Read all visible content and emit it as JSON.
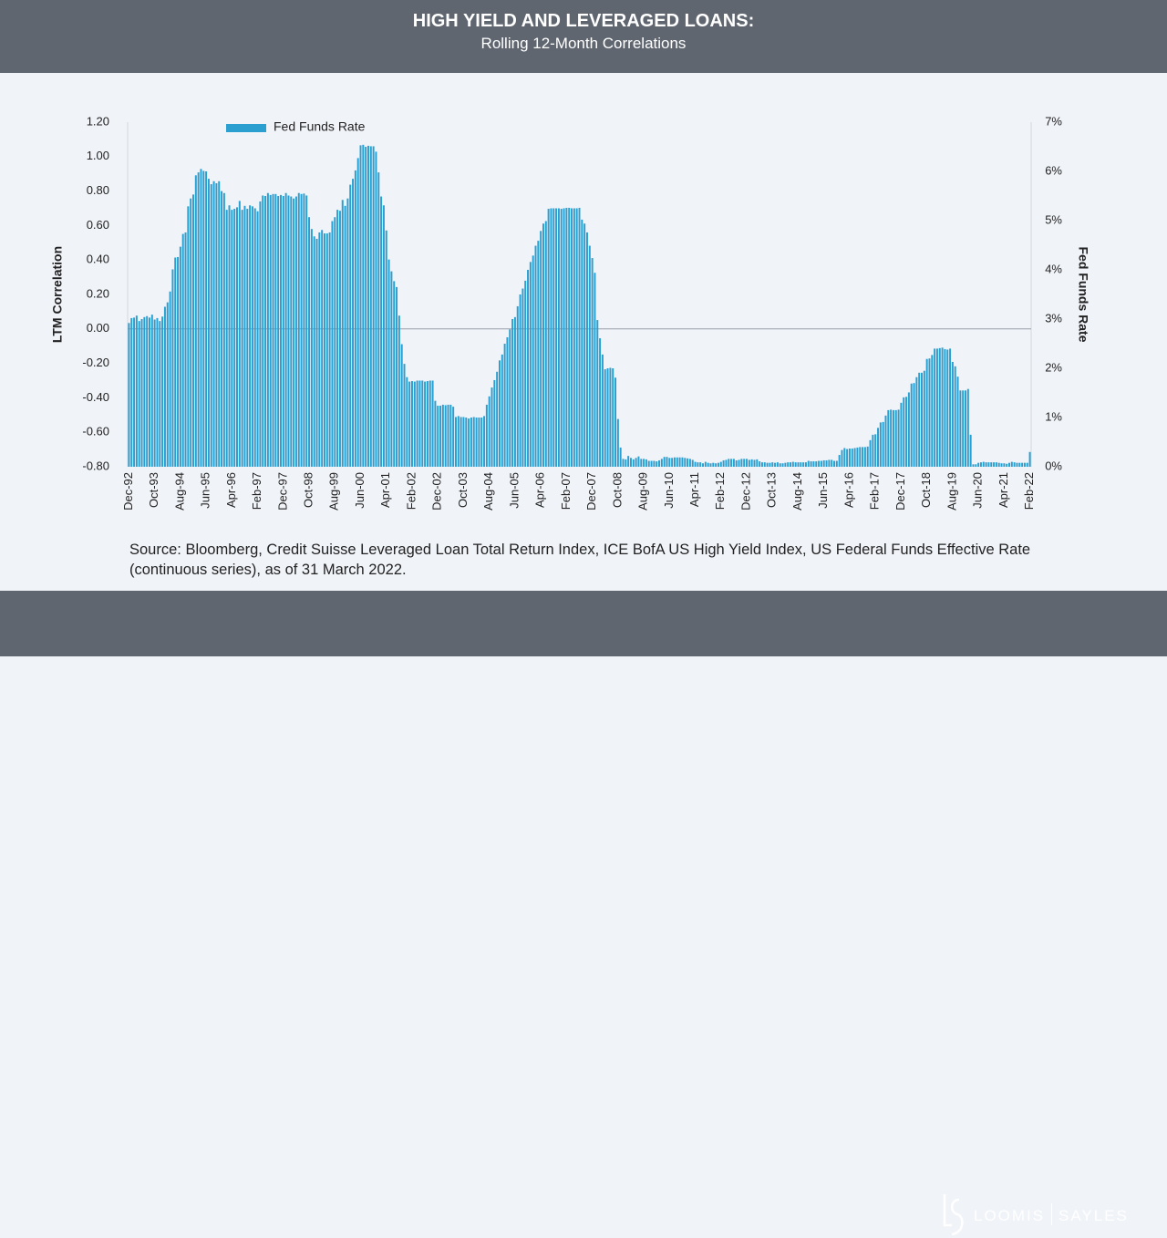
{
  "header": {
    "title": "HIGH YIELD AND LEVERAGED LOANS:",
    "subtitle": "Rolling 12-Month Correlations"
  },
  "chart_data": {
    "type": "bar",
    "y_label": "LTM Correlation",
    "y2_label": "Fed Funds Rate",
    "legend": "upper left",
    "categories": [
      "Dec-92",
      null,
      null,
      null,
      null,
      null,
      null,
      null,
      null,
      null,
      "Oct-93",
      null,
      null,
      null,
      null,
      null,
      null,
      null,
      null,
      null,
      "Aug-94",
      null,
      null,
      null,
      null,
      null,
      null,
      null,
      null,
      null,
      "Jun-95",
      null,
      null,
      null,
      null,
      null,
      null,
      null,
      null,
      null,
      "Apr-96",
      null,
      null,
      null,
      null,
      null,
      null,
      null,
      null,
      null,
      "Feb-97",
      null,
      null,
      null,
      null,
      null,
      null,
      null,
      null,
      null,
      "Dec-97",
      null,
      null,
      null,
      null,
      null,
      null,
      null,
      null,
      null,
      "Oct-98",
      null,
      null,
      null,
      null,
      null,
      null,
      null,
      null,
      null,
      "Aug-99",
      null,
      null,
      null,
      null,
      null,
      null,
      null,
      null,
      null,
      "Jun-00",
      null,
      null,
      null,
      null,
      null,
      null,
      null,
      null,
      null,
      "Apr-01",
      null,
      null,
      null,
      null,
      null,
      null,
      null,
      null,
      null,
      "Feb-02",
      null,
      null,
      null,
      null,
      null,
      null,
      null,
      null,
      null,
      "Dec-02",
      null,
      null,
      null,
      null,
      null,
      null,
      null,
      null,
      null,
      "Oct-03",
      null,
      null,
      null,
      null,
      null,
      null,
      null,
      null,
      null,
      "Aug-04",
      null,
      null,
      null,
      null,
      null,
      null,
      null,
      null,
      null,
      "Jun-05",
      null,
      null,
      null,
      null,
      null,
      null,
      null,
      null,
      null,
      "Apr-06",
      null,
      null,
      null,
      null,
      null,
      null,
      null,
      null,
      null,
      "Feb-07",
      null,
      null,
      null,
      null,
      null,
      null,
      null,
      null,
      null,
      "Dec-07",
      null,
      null,
      null,
      null,
      null,
      null,
      null,
      null,
      null,
      "Oct-08",
      null,
      null,
      null,
      null,
      null,
      null,
      null,
      null,
      null,
      "Aug-09",
      null,
      null,
      null,
      null,
      null,
      null,
      null,
      null,
      null,
      "Jun-10",
      null,
      null,
      null,
      null,
      null,
      null,
      null,
      null,
      null,
      "Apr-11",
      null,
      null,
      null,
      null,
      null,
      null,
      null,
      null,
      null,
      "Feb-12",
      null,
      null,
      null,
      null,
      null,
      null,
      null,
      null,
      null,
      "Dec-12",
      null,
      null,
      null,
      null,
      null,
      null,
      null,
      null,
      null,
      "Oct-13",
      null,
      null,
      null,
      null,
      null,
      null,
      null,
      null,
      null,
      "Aug-14",
      null,
      null,
      null,
      null,
      null,
      null,
      null,
      null,
      null,
      "Jun-15",
      null,
      null,
      null,
      null,
      null,
      null,
      null,
      null,
      null,
      "Apr-16",
      null,
      null,
      null,
      null,
      null,
      null,
      null,
      null,
      null,
      "Feb-17",
      null,
      null,
      null,
      null,
      null,
      null,
      null,
      null,
      null,
      "Dec-17",
      null,
      null,
      null,
      null,
      null,
      null,
      null,
      null,
      null,
      "Oct-18",
      null,
      null,
      null,
      null,
      null,
      null,
      null,
      null,
      null,
      "Aug-19",
      null,
      null,
      null,
      null,
      null,
      null,
      null,
      null,
      null,
      "Jun-20",
      null,
      null,
      null,
      null,
      null,
      null,
      null,
      null,
      null,
      "Apr-21",
      null,
      null,
      null,
      null,
      null,
      null,
      null,
      null,
      null,
      "Feb-22"
    ],
    "series": [
      {
        "name": "Fed Funds Rate",
        "color": "#2b9fd0",
        "axis": "y2",
        "values": [
          2.92,
          3.02,
          3.03,
          3.07,
          2.96,
          3.0,
          3.04,
          3.06,
          3.03,
          3.09,
          2.99,
          3.02,
          2.96,
          3.05,
          3.25,
          3.34,
          3.56,
          4.01,
          4.25,
          4.26,
          4.47,
          4.73,
          4.76,
          5.29,
          5.45,
          5.53,
          5.92,
          5.98,
          6.05,
          6.01,
          6.0,
          5.85,
          5.74,
          5.8,
          5.76,
          5.8,
          5.6,
          5.56,
          5.22,
          5.31,
          5.22,
          5.24,
          5.27,
          5.4,
          5.22,
          5.3,
          5.24,
          5.31,
          5.29,
          5.25,
          5.19,
          5.39,
          5.51,
          5.5,
          5.56,
          5.52,
          5.54,
          5.54,
          5.5,
          5.52,
          5.5,
          5.56,
          5.51,
          5.49,
          5.45,
          5.49,
          5.56,
          5.54,
          5.55,
          5.51,
          5.07,
          4.83,
          4.68,
          4.63,
          4.76,
          4.81,
          4.74,
          4.74,
          4.76,
          4.99,
          5.07,
          5.22,
          5.2,
          5.42,
          5.3,
          5.45,
          5.73,
          5.85,
          6.02,
          6.27,
          6.53,
          6.54,
          6.5,
          6.52,
          6.51,
          6.51,
          6.4,
          5.98,
          5.49,
          5.31,
          4.8,
          4.21,
          3.97,
          3.77,
          3.65,
          3.07,
          2.49,
          2.09,
          1.82,
          1.73,
          1.74,
          1.73,
          1.75,
          1.75,
          1.75,
          1.73,
          1.74,
          1.75,
          1.75,
          1.34,
          1.24,
          1.24,
          1.26,
          1.25,
          1.26,
          1.26,
          1.22,
          1.01,
          1.03,
          1.01,
          1.01,
          1.0,
          0.98,
          1.0,
          1.01,
          1.0,
          1.0,
          1.0,
          1.03,
          1.26,
          1.43,
          1.61,
          1.76,
          1.93,
          2.16,
          2.28,
          2.5,
          2.63,
          2.79,
          3.0,
          3.04,
          3.26,
          3.5,
          3.62,
          3.78,
          4.0,
          4.16,
          4.29,
          4.49,
          4.59,
          4.79,
          4.94,
          4.99,
          5.24,
          5.25,
          5.25,
          5.25,
          5.25,
          5.24,
          5.25,
          5.26,
          5.26,
          5.25,
          5.25,
          5.25,
          5.26,
          5.02,
          4.94,
          4.76,
          4.49,
          4.24,
          3.94,
          2.98,
          2.61,
          2.28,
          1.98,
          2.0,
          2.01,
          2.0,
          1.81,
          0.97,
          0.39,
          0.16,
          0.15,
          0.22,
          0.18,
          0.15,
          0.18,
          0.21,
          0.16,
          0.16,
          0.15,
          0.12,
          0.12,
          0.12,
          0.11,
          0.13,
          0.16,
          0.2,
          0.2,
          0.18,
          0.18,
          0.19,
          0.19,
          0.19,
          0.19,
          0.18,
          0.17,
          0.16,
          0.14,
          0.1,
          0.09,
          0.09,
          0.07,
          0.1,
          0.08,
          0.07,
          0.08,
          0.07,
          0.08,
          0.1,
          0.13,
          0.14,
          0.16,
          0.16,
          0.16,
          0.13,
          0.14,
          0.16,
          0.16,
          0.16,
          0.14,
          0.15,
          0.14,
          0.15,
          0.11,
          0.09,
          0.09,
          0.08,
          0.08,
          0.09,
          0.08,
          0.09,
          0.07,
          0.07,
          0.08,
          0.09,
          0.09,
          0.1,
          0.09,
          0.09,
          0.09,
          0.09,
          0.09,
          0.12,
          0.11,
          0.11,
          0.11,
          0.12,
          0.12,
          0.13,
          0.13,
          0.14,
          0.14,
          0.12,
          0.12,
          0.24,
          0.34,
          0.38,
          0.36,
          0.37,
          0.37,
          0.38,
          0.39,
          0.4,
          0.4,
          0.4,
          0.41,
          0.54,
          0.65,
          0.66,
          0.79,
          0.9,
          0.91,
          1.04,
          1.15,
          1.16,
          1.15,
          1.15,
          1.16,
          1.3,
          1.41,
          1.42,
          1.51,
          1.69,
          1.7,
          1.82,
          1.91,
          1.91,
          1.95,
          2.19,
          2.2,
          2.27,
          2.4,
          2.4,
          2.41,
          2.42,
          2.39,
          2.38,
          2.4,
          2.13,
          2.04,
          1.83,
          1.55,
          1.55,
          1.55,
          1.58,
          0.65,
          0.05,
          0.05,
          0.08,
          0.09,
          0.1,
          0.09,
          0.09,
          0.09,
          0.09,
          0.09,
          0.08,
          0.07,
          0.07,
          0.06,
          0.08,
          0.1,
          0.09,
          0.08,
          0.08,
          0.08,
          0.08,
          0.08,
          0.3
        ]
      }
    ],
    "ylim": [
      -0.8,
      1.2
    ],
    "yticks": [
      {
        "value": -0.8,
        "label": "-0.80"
      },
      {
        "value": -0.6,
        "label": "-0.60"
      },
      {
        "value": -0.4,
        "label": "-0.40"
      },
      {
        "value": -0.2,
        "label": "-0.20"
      },
      {
        "value": 0,
        "label": "0.00"
      },
      {
        "value": 0.2,
        "label": "0.20"
      },
      {
        "value": 0.4,
        "label": "0.40"
      },
      {
        "value": 0.6,
        "label": "0.60"
      },
      {
        "value": 0.8,
        "label": "0.80"
      },
      {
        "value": 1.0,
        "label": "1.00"
      },
      {
        "value": 1.2,
        "label": "1.20"
      }
    ],
    "y2lim": [
      0,
      7
    ],
    "y2ticks": [
      {
        "value": 0,
        "label": "0%"
      },
      {
        "value": 1,
        "label": "1%"
      },
      {
        "value": 2,
        "label": "2%"
      },
      {
        "value": 3,
        "label": "3%"
      },
      {
        "value": 4,
        "label": "4%"
      },
      {
        "value": 5,
        "label": "5%"
      },
      {
        "value": 6,
        "label": "6%"
      },
      {
        "value": 7,
        "label": "7%"
      }
    ]
  },
  "source": "Source: Bloomberg, Credit Suisse Leveraged Loan Total Return Index, ICE BofA US High Yield Index, US Federal Funds Effective Rate (continuous series), as of 31 March 2022.",
  "logo": {
    "left": "LOOMIS",
    "right": "SAYLES"
  }
}
